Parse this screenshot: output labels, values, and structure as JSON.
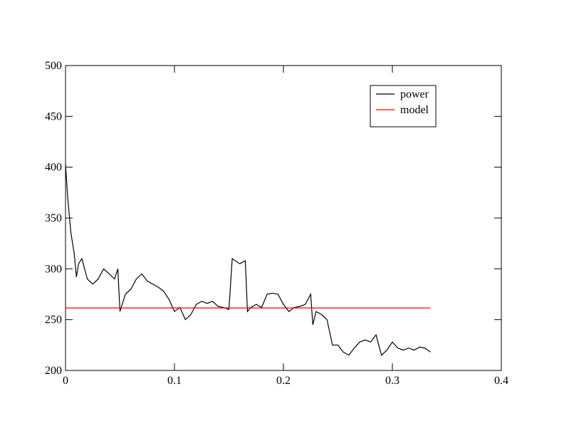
{
  "chart_data": {
    "type": "line",
    "xlim": [
      0,
      0.4
    ],
    "xticks": [
      0,
      0.1,
      0.2,
      0.3,
      0.4
    ],
    "ylim": [
      200,
      500
    ],
    "yticks": [
      200,
      250,
      300,
      350,
      400,
      450,
      500
    ],
    "legend": "upper right",
    "series": [
      {
        "name": "power",
        "color": "#000000",
        "x": [
          0,
          0.002,
          0.005,
          0.008,
          0.01,
          0.012,
          0.015,
          0.02,
          0.025,
          0.03,
          0.035,
          0.04,
          0.045,
          0.048,
          0.05,
          0.052,
          0.055,
          0.06,
          0.065,
          0.07,
          0.075,
          0.08,
          0.085,
          0.09,
          0.095,
          0.1,
          0.105,
          0.11,
          0.115,
          0.12,
          0.125,
          0.13,
          0.135,
          0.14,
          0.145,
          0.15,
          0.153,
          0.16,
          0.165,
          0.167,
          0.17,
          0.175,
          0.18,
          0.185,
          0.19,
          0.195,
          0.2,
          0.205,
          0.21,
          0.215,
          0.22,
          0.225,
          0.227,
          0.23,
          0.235,
          0.24,
          0.245,
          0.25,
          0.255,
          0.26,
          0.265,
          0.27,
          0.275,
          0.28,
          0.285,
          0.29,
          0.295,
          0.3,
          0.305,
          0.31,
          0.315,
          0.32,
          0.325,
          0.33,
          0.335
        ],
        "values": [
          403,
          370,
          335,
          315,
          292,
          305,
          310,
          290,
          285,
          290,
          300,
          295,
          290,
          300,
          258,
          265,
          275,
          280,
          290,
          295,
          288,
          285,
          282,
          278,
          270,
          258,
          262,
          250,
          255,
          265,
          268,
          266,
          268,
          263,
          262,
          260,
          310,
          305,
          308,
          258,
          262,
          265,
          262,
          275,
          276,
          275,
          265,
          258,
          262,
          263,
          265,
          275,
          245,
          258,
          255,
          250,
          225,
          225,
          218,
          215,
          222,
          228,
          230,
          228,
          235,
          215,
          220,
          228,
          222,
          220,
          222,
          220,
          223,
          222,
          218
        ]
      },
      {
        "name": "model",
        "color": "#ff0000",
        "x": [
          0,
          0.335
        ],
        "values": [
          261.5,
          261.5
        ]
      }
    ]
  }
}
